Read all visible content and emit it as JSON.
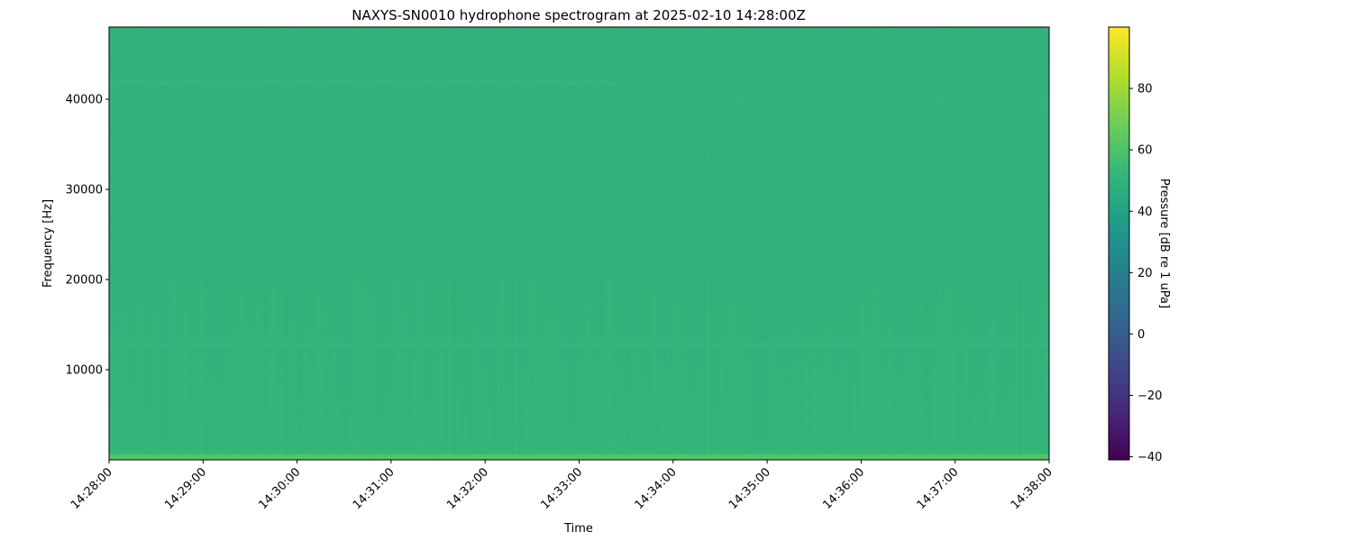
{
  "chart_data": {
    "type": "heatmap",
    "title": "NAXYS-SN0010 hydrophone spectrogram at 2025-02-10 14:28:00Z",
    "xlabel": "Time",
    "ylabel": "Frequency [Hz]",
    "x_ticks": [
      "14:28:00",
      "14:29:00",
      "14:30:00",
      "14:31:00",
      "14:32:00",
      "14:33:00",
      "14:34:00",
      "14:35:00",
      "14:36:00",
      "14:37:00",
      "14:38:00"
    ],
    "y_ticks": [
      10000,
      20000,
      30000,
      40000
    ],
    "ylim": [
      0,
      48000
    ],
    "colormap": "viridis",
    "colorbar": {
      "label": "Pressure [dB re 1 uPa]",
      "ticks": [
        -40,
        -20,
        0,
        20,
        40,
        60,
        80
      ],
      "range": [
        -41,
        100
      ]
    },
    "background_level_db": 50,
    "features": [
      {
        "kind": "low-frequency band",
        "freq_range_hz": [
          0,
          600
        ],
        "level_db": 62
      },
      {
        "kind": "tonal line",
        "freq_hz": 12800,
        "time_range": [
          "14:28:00",
          "14:38:00"
        ],
        "level_db": 53
      },
      {
        "kind": "tonal line",
        "freq_hz": 41800,
        "time_range": [
          "14:28:00",
          "14:33:25"
        ],
        "level_db": 53
      },
      {
        "kind": "tonal line",
        "freq_hz": 39500,
        "time_range": [
          "14:33:25",
          "14:38:00"
        ],
        "level_db": 52
      }
    ]
  }
}
